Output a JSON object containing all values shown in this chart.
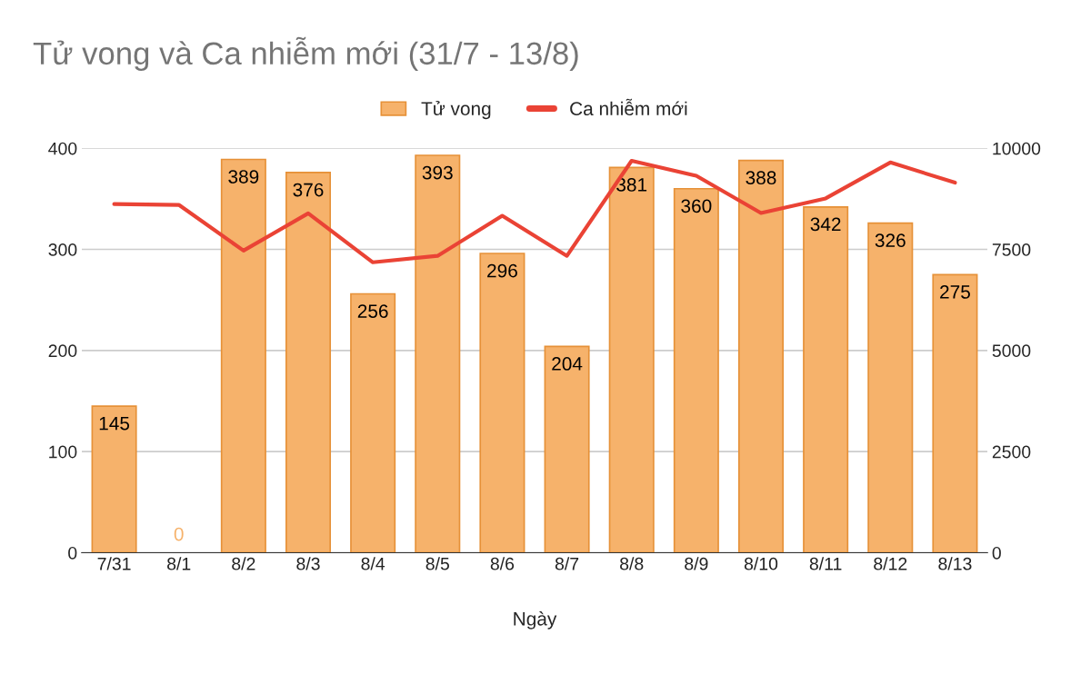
{
  "chart_data": {
    "type": "bar",
    "title": "Tử vong và Ca nhiễm mới (31/7 - 13/8)",
    "xlabel": "Ngày",
    "categories": [
      "7/31",
      "8/1",
      "8/2",
      "8/3",
      "8/4",
      "8/5",
      "8/6",
      "8/7",
      "8/8",
      "8/9",
      "8/10",
      "8/11",
      "8/12",
      "8/13"
    ],
    "series": [
      {
        "name": "Tử vong",
        "color": "#f6b26b",
        "values": [
          145,
          0,
          389,
          376,
          256,
          393,
          296,
          204,
          381,
          360,
          388,
          342,
          326,
          275
        ],
        "data_labels": true
      },
      {
        "name": "Ca nhiễm mới",
        "type": "line",
        "axis": "y2",
        "color": "#ea4335",
        "values": [
          8620,
          8600,
          7470,
          8390,
          7180,
          7340,
          8330,
          7340,
          9690,
          9320,
          8400,
          8760,
          9650,
          9150
        ]
      }
    ],
    "ylim": [
      0,
      400
    ],
    "yticks": [
      0,
      100,
      200,
      300,
      400
    ],
    "y2lim": [
      0,
      10000
    ],
    "y2ticks": [
      0,
      2500,
      5000,
      7500,
      10000
    ],
    "grid": "y",
    "legend": "top",
    "marker": "none",
    "line_style": "solid"
  }
}
